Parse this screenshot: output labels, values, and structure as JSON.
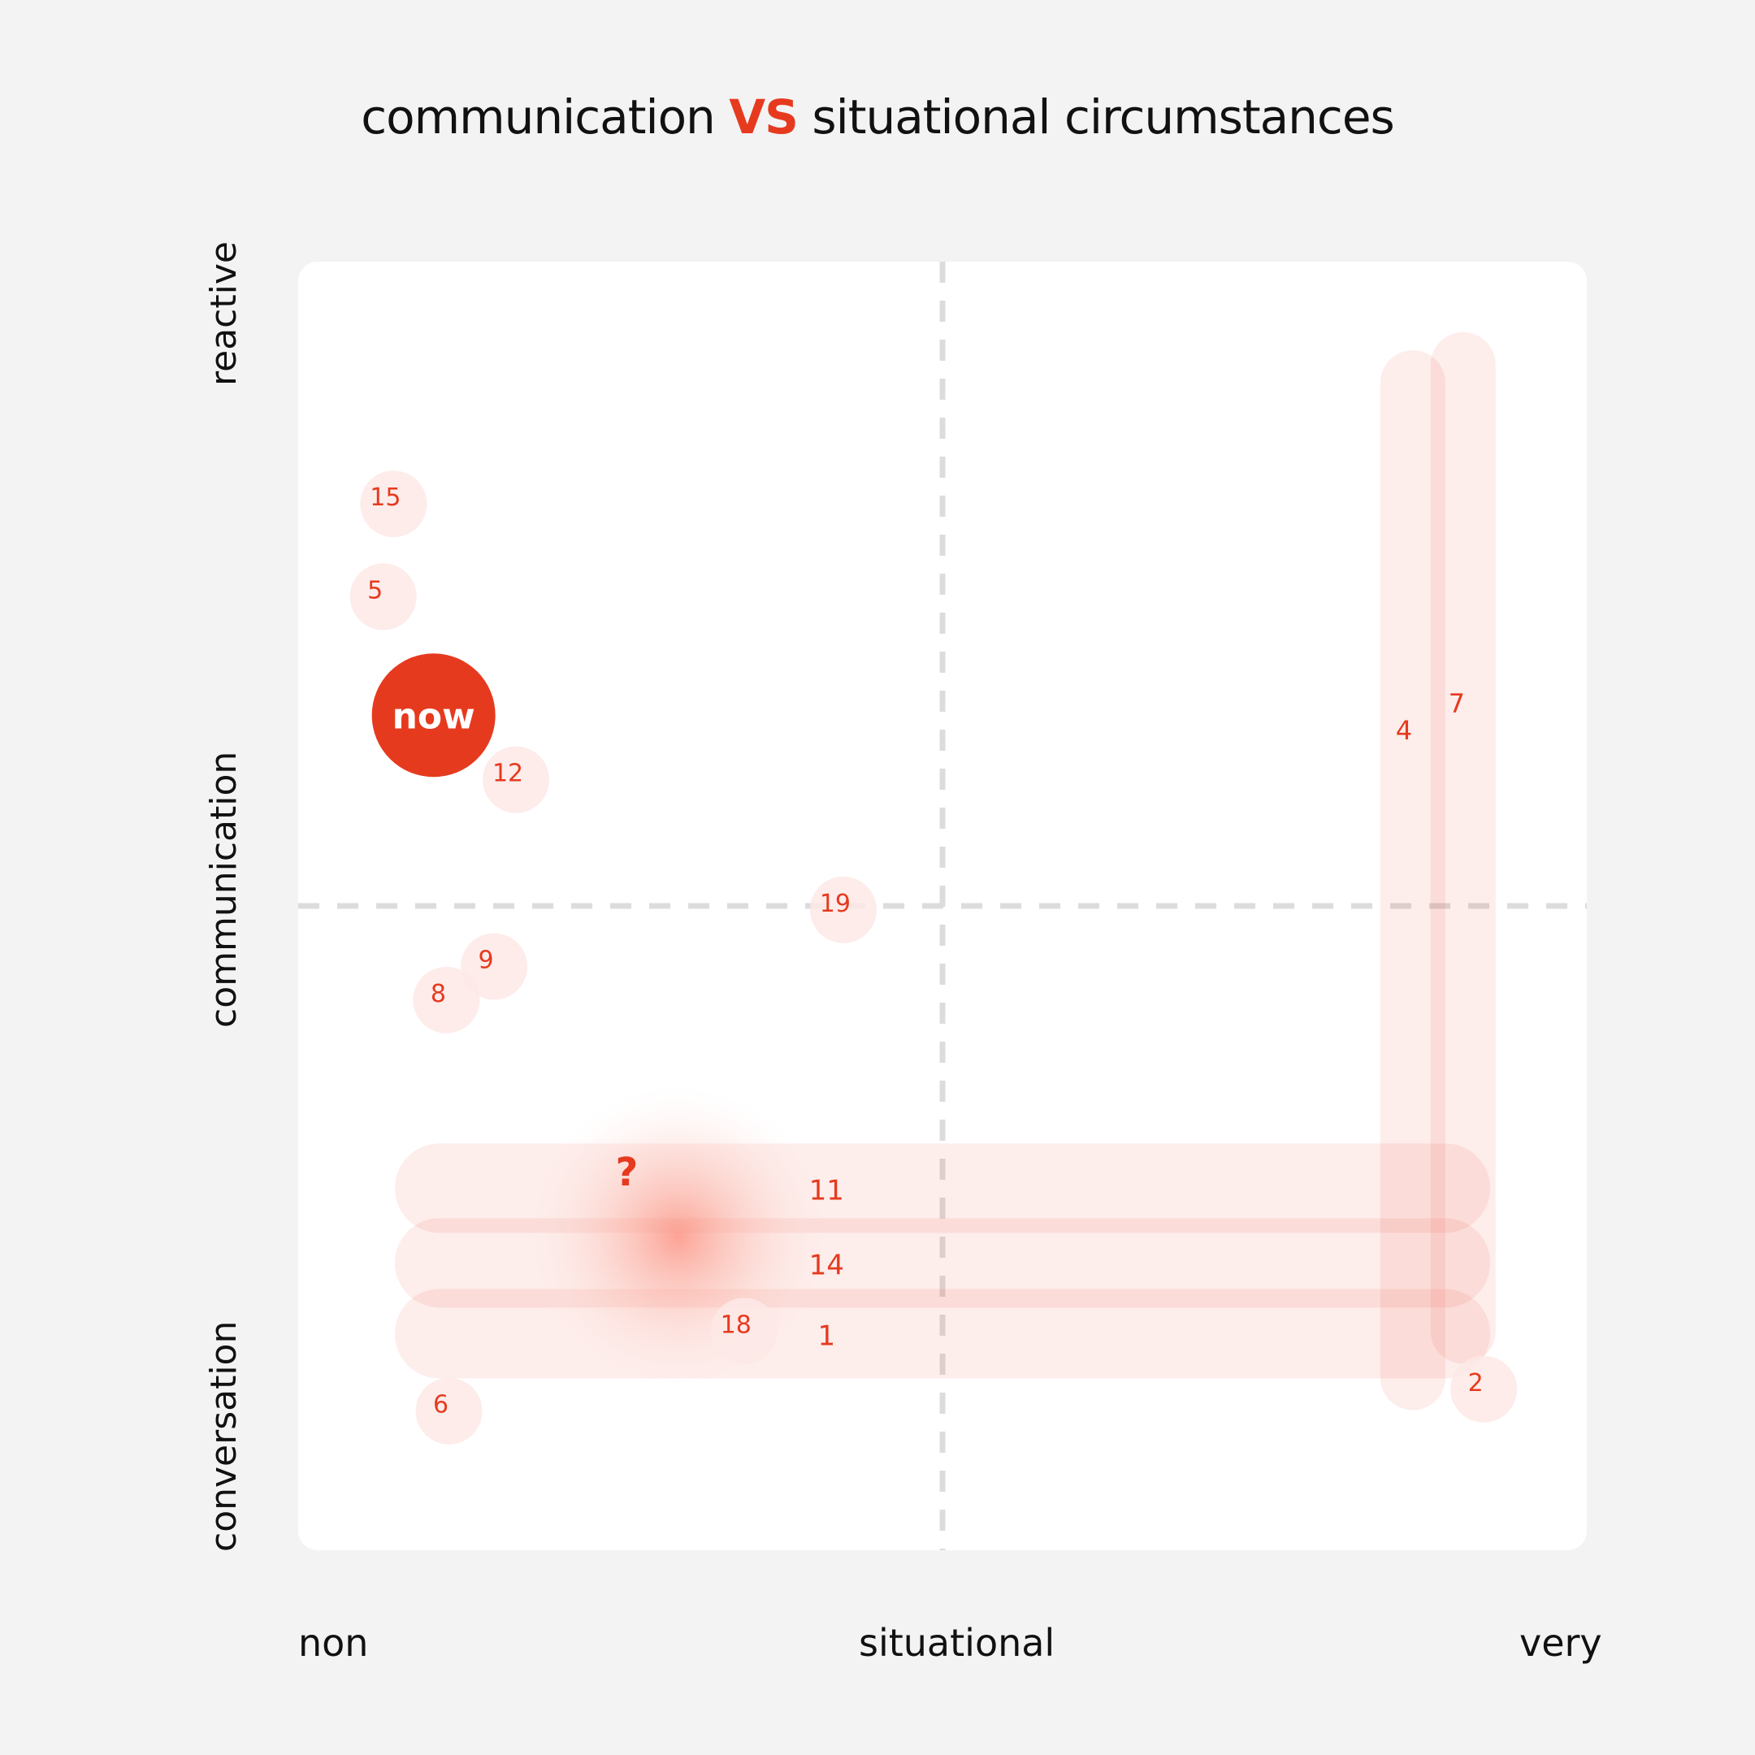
{
  "chart_data": {
    "type": "scatter",
    "title_parts": [
      "communication ",
      "VS",
      " situational circumstances"
    ],
    "y_axis_labels": [
      "reactive",
      "communication",
      "conversation"
    ],
    "x_axis_labels": [
      "non",
      "situational",
      "very"
    ],
    "xlim": [
      0,
      1
    ],
    "ylim": [
      0,
      1
    ],
    "grid": "quadrant dashed dividers",
    "accent_color": "#e63a1f",
    "bubble_color": "#fde9e6",
    "points": [
      {
        "label": "15",
        "x": 0.074,
        "y": 0.812
      },
      {
        "label": "5",
        "x": 0.066,
        "y": 0.74
      },
      {
        "label": "12",
        "x": 0.169,
        "y": 0.598
      },
      {
        "label": "19",
        "x": 0.423,
        "y": 0.497
      },
      {
        "label": "9",
        "x": 0.152,
        "y": 0.453
      },
      {
        "label": "8",
        "x": 0.115,
        "y": 0.427
      },
      {
        "label": "18",
        "x": 0.346,
        "y": 0.17
      },
      {
        "label": "6",
        "x": 0.117,
        "y": 0.108
      },
      {
        "label": "2",
        "x": 0.92,
        "y": 0.125
      }
    ],
    "highlight": {
      "label": "now",
      "x": 0.095,
      "y": 0.648
    },
    "unknown": {
      "label": "?",
      "x": 0.26,
      "y": 0.28
    },
    "ranges": [
      {
        "label": "11",
        "orientation": "horizontal",
        "y": 0.281,
        "x_start": 0.075,
        "x_end": 0.925
      },
      {
        "label": "14",
        "orientation": "horizontal",
        "y": 0.223,
        "x_start": 0.075,
        "x_end": 0.925
      },
      {
        "label": "1",
        "orientation": "horizontal",
        "y": 0.168,
        "x_start": 0.075,
        "x_end": 0.925
      },
      {
        "label": "4",
        "orientation": "vertical",
        "x": 0.865,
        "y_start": 0.134,
        "y_end": 0.906
      },
      {
        "label": "7",
        "orientation": "vertical",
        "x": 0.904,
        "y_start": 0.17,
        "y_end": 0.92
      }
    ]
  }
}
